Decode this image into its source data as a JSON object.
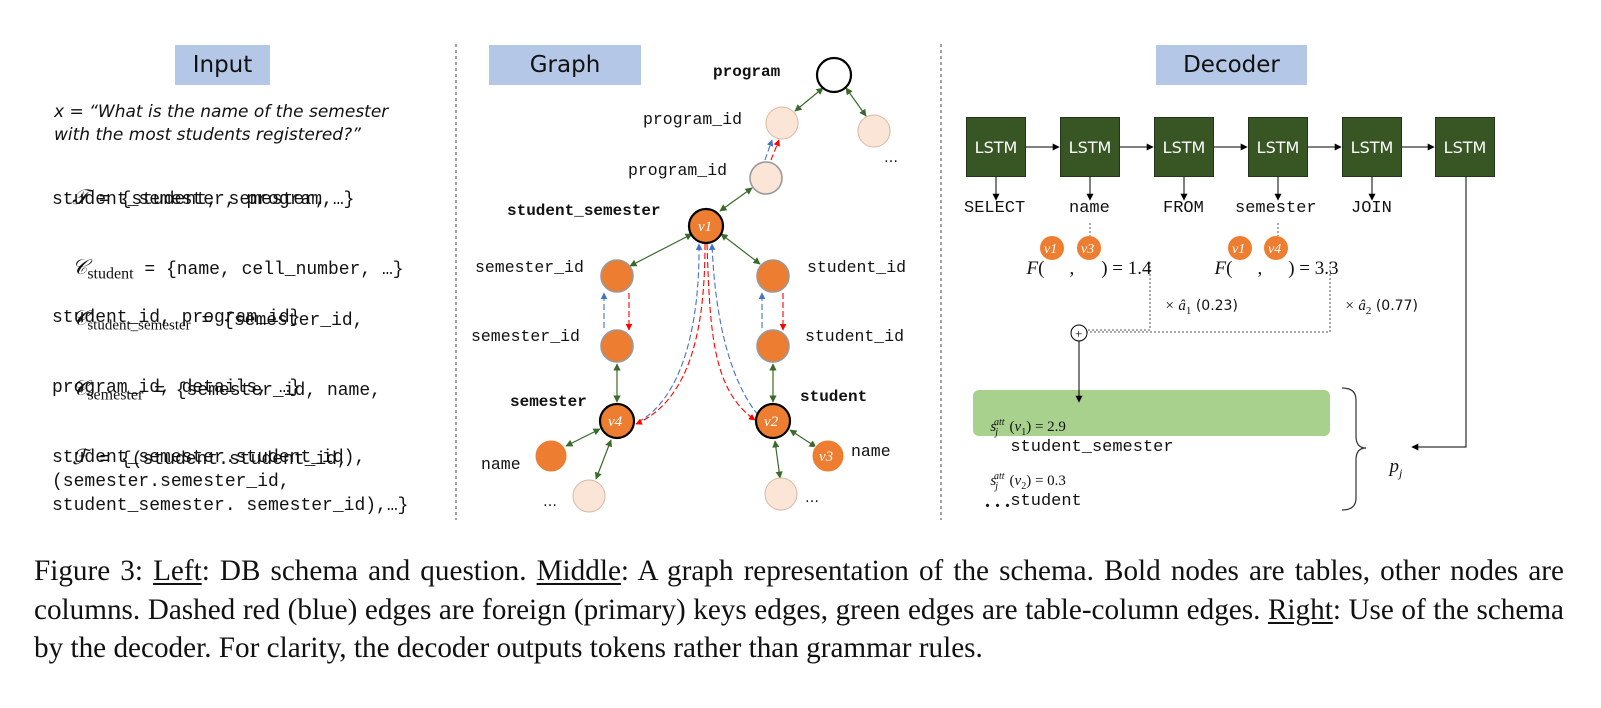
{
  "panels": {
    "input_title": "Input",
    "graph_title": "Graph",
    "decoder_title": "Decoder"
  },
  "input": {
    "question_line1": "x = “What is the name of the semester",
    "question_line2": "with the most students registered?”",
    "T_sym": "𝒯",
    "T_line1": " = {student, semester,",
    "T_line2": "student_semester, program,…}",
    "C_sym": "𝒞",
    "C_student_sub": "student",
    "C_student_val": " = {name, cell_number, …}",
    "C_ss_sub": "student_semester",
    "C_ss_line1": " = {semester_id,",
    "C_ss_line2": "student_id, program_id}",
    "C_sem_sub": "semester",
    "C_sem_line1": " = {semester_id, name,",
    "C_sem_line2": "program_id, details, …}",
    "F_sym": "ℱ",
    "F_line1": " = {(student.student_id,",
    "F_line2": "student_semester.student_id),",
    "F_line3": "(semester.semester_id,",
    "F_line4": "student_semester. semester_id),…}"
  },
  "graph": {
    "table_program": "program",
    "col_program_id_1": "program_id",
    "col_program_id_2": "program_id",
    "ellipsis_1": "…",
    "table_student_semester": "student_semester",
    "col_semester_id_1": "semester_id",
    "col_semester_id_2": "semester_id",
    "col_student_id_1": "student_id",
    "col_student_id_2": "student_id",
    "table_semester": "semester",
    "table_student": "student",
    "col_name_left": "name",
    "col_name_right": "name",
    "ellipsis_2": "…",
    "ellipsis_3": "…",
    "v1": "v1",
    "v2": "v2",
    "v3": "v3",
    "v4": "v4"
  },
  "decoder": {
    "lstm_label": "LSTM",
    "outputs": [
      "SELECT",
      "name",
      "FROM",
      "semester",
      "JOIN"
    ],
    "F_left_value": ") = 1.4",
    "F_right_value": ") = 3.3",
    "a1_label": "× â",
    "a1_sub": "1",
    "a1_val": " (0.23)",
    "a2_label": "× â",
    "a2_sub": "2",
    "a2_val": " (0.77)",
    "plus": "+",
    "att1_value": " = 2.9",
    "att1_table": "student_semester",
    "att2_value": " = 0.3",
    "att2_table": "student",
    "dots": ". . .",
    "pj": "p",
    "pj_sub": "j"
  },
  "caption": {
    "fig": "Figure 3: ",
    "left": "Left",
    "left_text": ": DB schema and question. ",
    "middle": "Middle",
    "middle_text": ": A graph representation of the schema. Bold nodes are tables, other nodes are columns. Dashed red (blue) edges are foreign (primary) keys edges, green edges are table-column edges. ",
    "right": "Right",
    "right_text": ": Use of the schema by the decoder. For clarity, the decoder outputs tokens rather than grammar rules."
  },
  "colors": {
    "header_bg": "#b4c7e7",
    "lstm": "#375623",
    "node_orange": "#ed7d31",
    "node_light": "#fbe5d6",
    "edge_green": "#548235",
    "edge_red": "#ff0000",
    "edge_blue": "#4472c4",
    "att_box": "#a9d18e"
  }
}
